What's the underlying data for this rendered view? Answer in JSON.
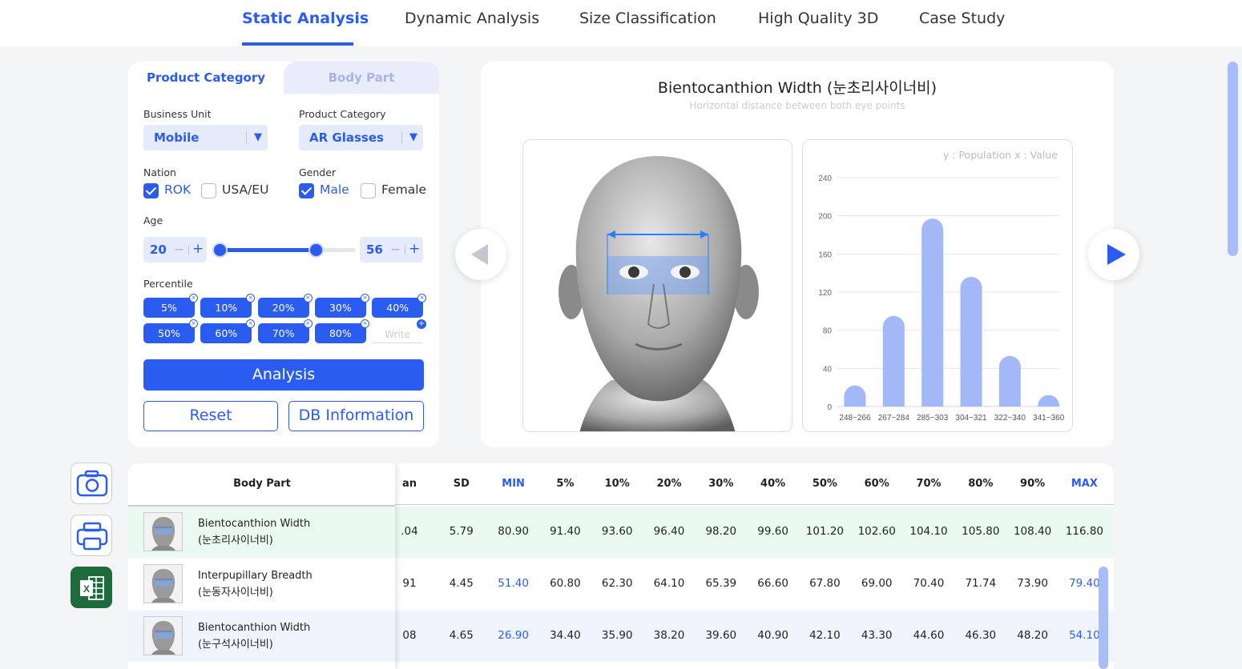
{
  "nav": {
    "tabs": [
      "Static Analysis",
      "Dynamic Analysis",
      "Size Classification",
      "High Quality 3D",
      "Case Study"
    ]
  },
  "filter": {
    "tab_product": "Product Category",
    "tab_body": "Body Part",
    "business_unit_label": "Business Unit",
    "business_unit_value": "Mobile",
    "product_category_label": "Product Category",
    "product_category_value": "AR Glasses",
    "nation_label": "Nation",
    "nation_options": [
      {
        "label": "ROK",
        "checked": true
      },
      {
        "label": "USA/EU",
        "checked": false
      }
    ],
    "gender_label": "Gender",
    "gender_options": [
      {
        "label": "Male",
        "checked": true
      },
      {
        "label": "Female",
        "checked": false
      }
    ],
    "age_label": "Age",
    "age_min": "20",
    "age_max": "56",
    "minus": "−",
    "plus": "+",
    "percentile_label": "Percentile",
    "percentiles": [
      "5%",
      "10%",
      "20%",
      "30%",
      "40%",
      "50%",
      "60%",
      "70%",
      "80%"
    ],
    "write_placeholder": "Write",
    "analysis_button": "Analysis",
    "reset_button": "Reset",
    "db_button": "DB Information"
  },
  "visual": {
    "title": "Bientocanthion Width (눈초리사이너비)",
    "subtitle": "Horizontal distance between both eye points"
  },
  "chart_data": {
    "type": "bar",
    "note": "y : Population    x : Value",
    "categories": [
      "248~266",
      "267~284",
      "285~303",
      "304~321",
      "322~340",
      "341~360"
    ],
    "values": [
      22,
      95,
      197,
      136,
      53,
      12
    ],
    "ylim": [
      0,
      240
    ],
    "yticks": [
      0,
      40,
      80,
      120,
      160,
      200,
      240
    ],
    "grid": true,
    "bar_color": "#a3b8f7"
  },
  "table": {
    "sticky_header": "Body Part",
    "columns": [
      {
        "label": "an",
        "blue": false
      },
      {
        "label": "SD",
        "blue": false
      },
      {
        "label": "MIN",
        "blue": true
      },
      {
        "label": "5%",
        "blue": false
      },
      {
        "label": "10%",
        "blue": false
      },
      {
        "label": "20%",
        "blue": false
      },
      {
        "label": "30%",
        "blue": false
      },
      {
        "label": "40%",
        "blue": false
      },
      {
        "label": "50%",
        "blue": false
      },
      {
        "label": "60%",
        "blue": false
      },
      {
        "label": "70%",
        "blue": false
      },
      {
        "label": "80%",
        "blue": false
      },
      {
        "label": "90%",
        "blue": false
      },
      {
        "label": "MAX",
        "blue": true
      }
    ],
    "rows": [
      {
        "name": "Bientocanthion Width",
        "sub": "(눈초리사이너비)",
        "highlight": "#eafaf2",
        "cells": [
          ".04",
          "5.79",
          "80.90",
          "91.40",
          "93.60",
          "96.40",
          "98.20",
          "99.60",
          "101.20",
          "102.60",
          "104.10",
          "105.80",
          "108.40",
          "116.80"
        ],
        "blue_minmax": false
      },
      {
        "name": "Interpupillary Breadth",
        "sub": "(눈동자사이너비)",
        "highlight": "#ffffff",
        "cells": [
          "91",
          "4.45",
          "51.40",
          "60.80",
          "62.30",
          "64.10",
          "65.39",
          "66.60",
          "67.80",
          "69.00",
          "70.40",
          "71.74",
          "73.90",
          "79.40"
        ],
        "blue_minmax": true
      },
      {
        "name": "Bientocanthion Width",
        "sub": "(눈구석사이너비)",
        "highlight": "#f0f4fc",
        "cells": [
          "08",
          "4.65",
          "26.90",
          "34.40",
          "35.90",
          "38.20",
          "39.60",
          "40.90",
          "42.10",
          "43.30",
          "44.60",
          "46.30",
          "48.20",
          "54.10"
        ],
        "blue_minmax": true
      }
    ]
  },
  "side_icons": [
    "camera-icon",
    "printer-icon",
    "excel-icon"
  ]
}
